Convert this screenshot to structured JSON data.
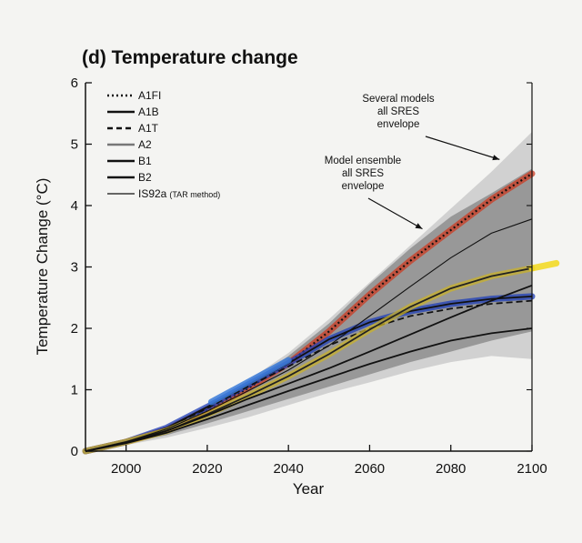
{
  "chart_data": {
    "type": "line",
    "title": "(d) Temperature change",
    "xlabel": "Year",
    "ylabel": "Temperature Change (°C)",
    "xlim": [
      1990,
      2100
    ],
    "ylim": [
      0,
      6
    ],
    "xticks": [
      2000,
      2020,
      2040,
      2060,
      2080,
      2100
    ],
    "yticks": [
      0,
      1,
      2,
      3,
      4,
      5,
      6
    ],
    "grid": false,
    "legend": "top-left",
    "legend_entries": [
      {
        "label": "A1FI",
        "style": "dotted"
      },
      {
        "label": "A1B",
        "style": "solid"
      },
      {
        "label": "A1T",
        "style": "dashed"
      },
      {
        "label": "A2",
        "style": "solid-gray"
      },
      {
        "label": "B1",
        "style": "solid"
      },
      {
        "label": "B2",
        "style": "solid"
      },
      {
        "label": "IS92a",
        "label_suffix": "(TAR method)",
        "style": "solid-thin"
      }
    ],
    "annotations": [
      {
        "lines": [
          "Several models",
          "all SRES",
          "envelope"
        ],
        "points_to": [
          2092,
          4.75
        ]
      },
      {
        "lines": [
          "Model ensemble",
          "all SRES",
          "envelope"
        ],
        "points_to": [
          2073,
          3.62
        ]
      }
    ],
    "bands": [
      {
        "name": "Several models all SRES envelope",
        "color": "#c6c6c6",
        "upper": [
          [
            1990,
            0
          ],
          [
            2000,
            0.18
          ],
          [
            2010,
            0.42
          ],
          [
            2020,
            0.75
          ],
          [
            2030,
            1.15
          ],
          [
            2040,
            1.6
          ],
          [
            2050,
            2.15
          ],
          [
            2060,
            2.75
          ],
          [
            2070,
            3.35
          ],
          [
            2080,
            3.95
          ],
          [
            2090,
            4.55
          ],
          [
            2100,
            5.2
          ]
        ],
        "lower": [
          [
            1990,
            0
          ],
          [
            2000,
            0.1
          ],
          [
            2010,
            0.22
          ],
          [
            2020,
            0.38
          ],
          [
            2030,
            0.55
          ],
          [
            2040,
            0.75
          ],
          [
            2050,
            0.95
          ],
          [
            2060,
            1.12
          ],
          [
            2070,
            1.3
          ],
          [
            2080,
            1.45
          ],
          [
            2090,
            1.55
          ],
          [
            2100,
            1.5
          ]
        ]
      },
      {
        "name": "Model ensemble all SRES envelope",
        "color": "#8e8e8e",
        "upper": [
          [
            1990,
            0
          ],
          [
            2000,
            0.16
          ],
          [
            2010,
            0.38
          ],
          [
            2020,
            0.72
          ],
          [
            2030,
            1.08
          ],
          [
            2040,
            1.55
          ],
          [
            2050,
            2.08
          ],
          [
            2060,
            2.72
          ],
          [
            2070,
            3.3
          ],
          [
            2080,
            3.82
          ],
          [
            2090,
            4.2
          ],
          [
            2100,
            4.6
          ]
        ],
        "lower": [
          [
            1990,
            0
          ],
          [
            2000,
            0.12
          ],
          [
            2010,
            0.26
          ],
          [
            2020,
            0.45
          ],
          [
            2030,
            0.65
          ],
          [
            2040,
            0.85
          ],
          [
            2050,
            1.05
          ],
          [
            2060,
            1.25
          ],
          [
            2070,
            1.45
          ],
          [
            2080,
            1.62
          ],
          [
            2090,
            1.8
          ],
          [
            2100,
            1.95
          ]
        ]
      }
    ],
    "series": [
      {
        "name": "A1FI",
        "color": "#111111",
        "highlight": "#cc3b22",
        "style": "dotted",
        "x": [
          1990,
          2000,
          2010,
          2020,
          2030,
          2040,
          2050,
          2060,
          2070,
          2080,
          2090,
          2100
        ],
        "y": [
          0,
          0.15,
          0.35,
          0.68,
          1.02,
          1.43,
          1.95,
          2.55,
          3.1,
          3.6,
          4.1,
          4.52
        ]
      },
      {
        "name": "A1B",
        "color": "#111111",
        "highlight": "#1f3fb8",
        "style": "solid",
        "x": [
          1990,
          2000,
          2010,
          2020,
          2030,
          2040,
          2050,
          2060,
          2070,
          2080,
          2090,
          2100
        ],
        "y": [
          0,
          0.15,
          0.38,
          0.72,
          1.08,
          1.43,
          1.82,
          2.1,
          2.28,
          2.4,
          2.48,
          2.52
        ]
      },
      {
        "name": "A1T",
        "color": "#111111",
        "style": "dashed",
        "x": [
          1990,
          2000,
          2010,
          2020,
          2030,
          2040,
          2050,
          2060,
          2070,
          2080,
          2090,
          2100
        ],
        "y": [
          0,
          0.15,
          0.37,
          0.7,
          1.05,
          1.38,
          1.72,
          2.0,
          2.2,
          2.32,
          2.4,
          2.45
        ]
      },
      {
        "name": "A2",
        "color": "#222222",
        "highlight": "#c9b22a",
        "style": "solid",
        "x": [
          1990,
          2000,
          2010,
          2020,
          2030,
          2040,
          2050,
          2060,
          2070,
          2080,
          2090,
          2100
        ],
        "y": [
          0,
          0.15,
          0.33,
          0.6,
          0.9,
          1.22,
          1.58,
          1.98,
          2.35,
          2.65,
          2.85,
          2.98
        ]
      },
      {
        "name": "B1",
        "color": "#111111",
        "style": "solid",
        "x": [
          1990,
          2000,
          2010,
          2020,
          2030,
          2040,
          2050,
          2060,
          2070,
          2080,
          2090,
          2100
        ],
        "y": [
          0,
          0.13,
          0.3,
          0.52,
          0.75,
          0.98,
          1.2,
          1.42,
          1.62,
          1.8,
          1.92,
          2.0
        ]
      },
      {
        "name": "B2",
        "color": "#111111",
        "style": "solid",
        "x": [
          1990,
          2000,
          2010,
          2020,
          2030,
          2040,
          2050,
          2060,
          2070,
          2080,
          2090,
          2100
        ],
        "y": [
          0,
          0.14,
          0.33,
          0.58,
          0.85,
          1.1,
          1.35,
          1.62,
          1.9,
          2.18,
          2.45,
          2.7
        ]
      },
      {
        "name": "IS92a",
        "color": "#111111",
        "style": "solid-thin",
        "x": [
          1990,
          2000,
          2010,
          2020,
          2030,
          2040,
          2050,
          2060,
          2070,
          2080,
          2090,
          2100
        ],
        "y": [
          0,
          0.15,
          0.36,
          0.65,
          0.98,
          1.32,
          1.72,
          2.2,
          2.68,
          3.15,
          3.55,
          3.78
        ]
      }
    ],
    "extras": [
      {
        "name": "yellow-stroke-beyond-2100",
        "color": "#f2d81c",
        "x": [
          2100,
          2106
        ],
        "y": [
          2.98,
          3.06
        ]
      },
      {
        "name": "blue-stroke-left",
        "color": "#3a7ad8",
        "x": [
          2021,
          2040
        ],
        "y": [
          0.8,
          1.48
        ]
      }
    ]
  }
}
